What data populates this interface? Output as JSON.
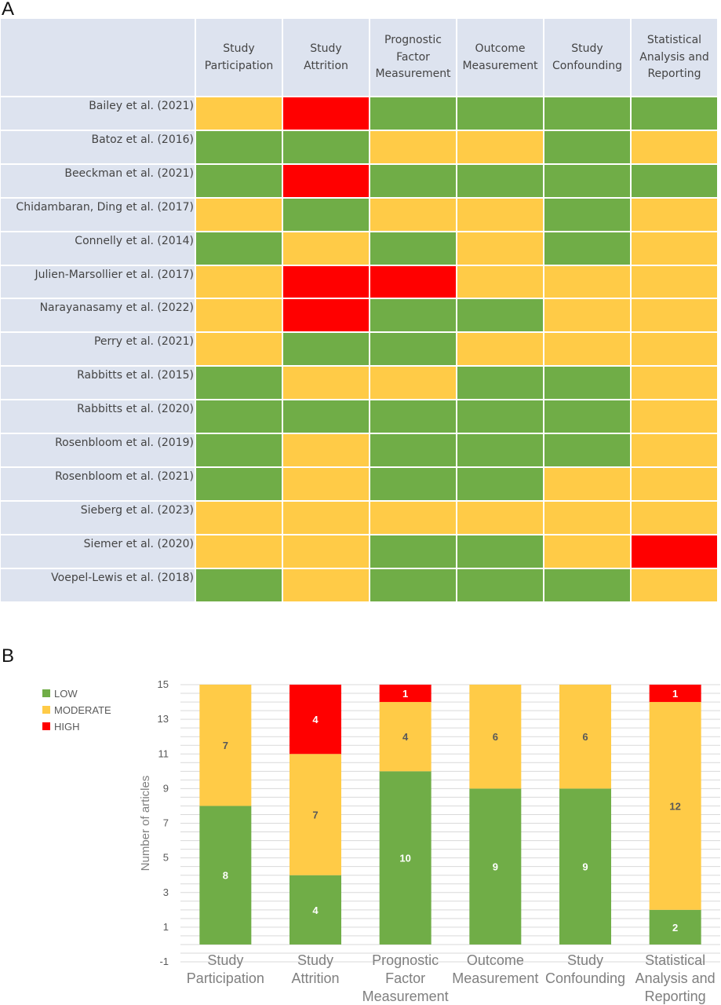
{
  "panel_labels": {
    "a": "A",
    "b": "B"
  },
  "colors": {
    "low": "#70ad47",
    "moderate": "#ffcb47",
    "high": "#ff0000",
    "table_bg": "#dde3ef",
    "grid": "#d9d9d9"
  },
  "table": {
    "columns": [
      "Study\nParticipation",
      "Study\nAttrition",
      "Prognostic\nFactor\nMeasurement",
      "Outcome\nMeasurement",
      "Study\nConfounding",
      "Statistical\nAnalysis and\nReporting"
    ],
    "rows": [
      {
        "study": "Bailey et al. (2021)",
        "ratings": [
          "moderate",
          "high",
          "low",
          "low",
          "low",
          "low"
        ]
      },
      {
        "study": "Batoz et al. (2016)",
        "ratings": [
          "low",
          "low",
          "moderate",
          "moderate",
          "low",
          "moderate"
        ]
      },
      {
        "study": "Beeckman et al. (2021)",
        "ratings": [
          "low",
          "high",
          "low",
          "low",
          "low",
          "low"
        ]
      },
      {
        "study": "Chidambaran, Ding et al. (2017)",
        "ratings": [
          "moderate",
          "low",
          "moderate",
          "moderate",
          "low",
          "moderate"
        ]
      },
      {
        "study": "Connelly et al. (2014)",
        "ratings": [
          "low",
          "moderate",
          "low",
          "moderate",
          "low",
          "moderate"
        ]
      },
      {
        "study": "Julien-Marsollier et al. (2017)",
        "ratings": [
          "moderate",
          "high",
          "high",
          "moderate",
          "moderate",
          "moderate"
        ]
      },
      {
        "study": "Narayanasamy et al. (2022)",
        "ratings": [
          "moderate",
          "high",
          "low",
          "low",
          "moderate",
          "moderate"
        ]
      },
      {
        "study": "Perry et al. (2021)",
        "ratings": [
          "moderate",
          "low",
          "low",
          "moderate",
          "moderate",
          "moderate"
        ]
      },
      {
        "study": "Rabbitts et al. (2015)",
        "ratings": [
          "low",
          "moderate",
          "moderate",
          "low",
          "low",
          "moderate"
        ]
      },
      {
        "study": "Rabbitts et al. (2020)",
        "ratings": [
          "low",
          "low",
          "low",
          "low",
          "low",
          "moderate"
        ]
      },
      {
        "study": "Rosenbloom et al. (2019)",
        "ratings": [
          "low",
          "moderate",
          "low",
          "low",
          "low",
          "moderate"
        ]
      },
      {
        "study": "Rosenbloom et al. (2021)",
        "ratings": [
          "low",
          "moderate",
          "low",
          "low",
          "moderate",
          "moderate"
        ]
      },
      {
        "study": "Sieberg et al. (2023)",
        "ratings": [
          "moderate",
          "moderate",
          "moderate",
          "moderate",
          "moderate",
          "moderate"
        ]
      },
      {
        "study": "Siemer et al. (2020)",
        "ratings": [
          "moderate",
          "moderate",
          "low",
          "low",
          "moderate",
          "high"
        ]
      },
      {
        "study": "Voepel-Lewis et al. (2018)",
        "ratings": [
          "low",
          "moderate",
          "low",
          "low",
          "low",
          "moderate"
        ]
      }
    ]
  },
  "chart_data": {
    "type": "bar",
    "stacked": true,
    "title": "",
    "xlabel": "",
    "ylabel": "Number of articles",
    "ylim": [
      -1,
      15
    ],
    "yticks": [
      -1,
      1,
      3,
      5,
      7,
      9,
      11,
      13,
      15
    ],
    "grid": true,
    "legend_position": "top-left",
    "categories": [
      "Study Participation",
      "Study Attrition",
      "Prognostic Factor Measurement",
      "Outcome Measurement",
      "Study Confounding",
      "Statistical Analysis and Reporting"
    ],
    "category_lines": [
      [
        "Study",
        "Participation"
      ],
      [
        "Study",
        "Attrition"
      ],
      [
        "Prognostic",
        "Factor",
        "Measurement"
      ],
      [
        "Outcome",
        "Measurement"
      ],
      [
        "Study",
        "Confounding"
      ],
      [
        "Statistical",
        "Analysis and",
        "Reporting"
      ]
    ],
    "series": [
      {
        "name": "LOW",
        "color": "#70ad47",
        "values": [
          8,
          4,
          10,
          9,
          9,
          2
        ],
        "labels": [
          "8",
          "4",
          "10",
          "9",
          "9",
          "2"
        ]
      },
      {
        "name": "MODERATE",
        "color": "#ffcb47",
        "values": [
          7,
          7,
          4,
          6,
          6,
          12
        ],
        "labels": [
          "7",
          "7",
          "4",
          "6",
          "6",
          "12"
        ]
      },
      {
        "name": "HIGH",
        "color": "#ff0000",
        "values": [
          0,
          4,
          1,
          0,
          0,
          1
        ],
        "labels": [
          "",
          "4",
          "1",
          "",
          "",
          "1"
        ]
      }
    ]
  }
}
